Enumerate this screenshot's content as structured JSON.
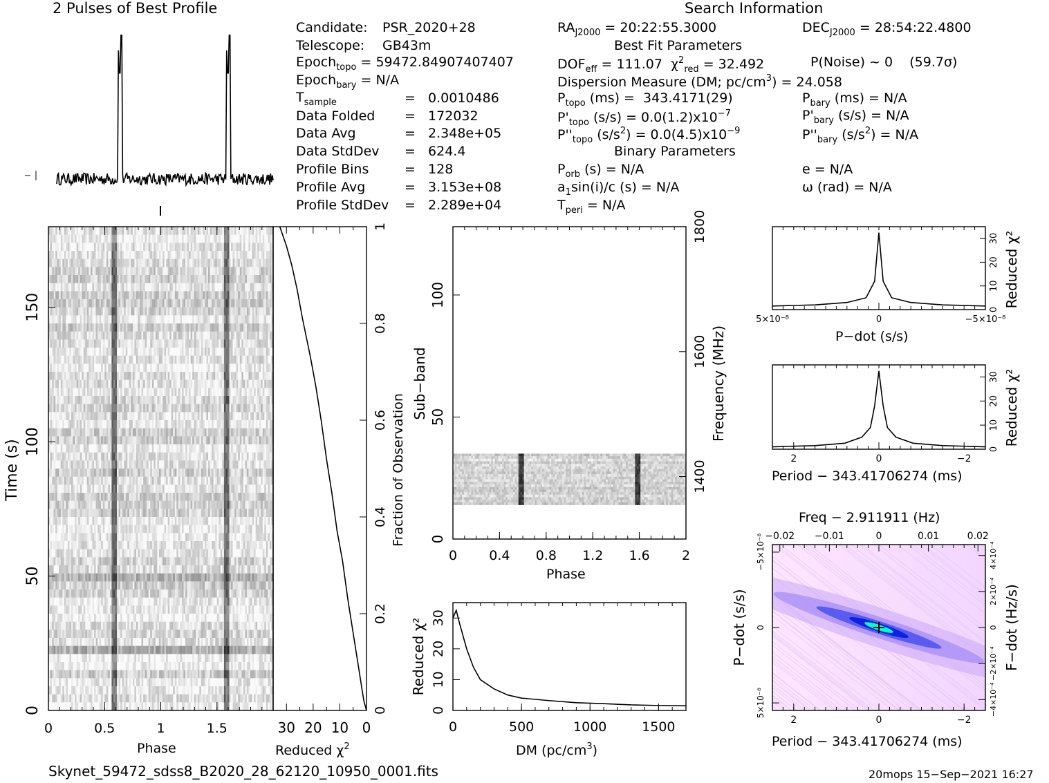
{
  "header": {
    "profile_title": "2 Pulses of Best Profile",
    "search_title": "Search Information",
    "best_fit_title": "Best Fit Parameters",
    "binary_title": "Binary Parameters"
  },
  "info": {
    "candidate_label": "Candidate:",
    "candidate": "PSR_2020+28",
    "telescope_label": "Telescope:",
    "telescope": "GB43m",
    "epoch_topo": "= 59472.84907407407",
    "epoch_bary": "= N/A",
    "t_sample": "=   0.0010486",
    "data_folded_label": "Data Folded",
    "data_folded": "=   172032",
    "data_avg_label": "Data Avg",
    "data_avg": "=   2.348e+05",
    "data_stddev_label": "Data StdDev",
    "data_stddev": "=   624.4",
    "profile_bins_label": "Profile Bins",
    "profile_bins": "=   128",
    "profile_avg_label": "Profile Avg",
    "profile_avg": "=   3.153e+08",
    "profile_stddev_label": "Profile StdDev",
    "profile_stddev": "=   2.289e+04"
  },
  "search": {
    "ra": "= 20:22:55.3000",
    "dec": "= 28:54:22.4800",
    "dof": "= 111.07",
    "chi2_red": "= 32.492",
    "p_noise": "P(Noise) ~ 0    (59.7σ)",
    "dm_label": "Dispersion Measure (DM; pc/cm",
    "dm_value": ") = 24.058",
    "p_topo": "(ms) =  343.4171(29)",
    "pd_topo": "(s/s) = 0.0(1.2)x10",
    "pd_topo_exp": "−7",
    "pdd_topo": "(s/s",
    "pdd_topo_val": ") = 0.0(4.5)x10",
    "pdd_topo_exp": "−9",
    "p_bary": "(ms) = N/A",
    "pd_bary": "(s/s) = N/A",
    "pdd_bary": ") = N/A",
    "p_orb": "(s) = N/A",
    "a1sini": "sin(i)/c (s) = N/A",
    "t_peri": "= N/A",
    "ecc": "e = N/A",
    "omega": "ω (rad) = N/A"
  },
  "labels": {
    "time_axis": "Time (s)",
    "phase_axis": "Phase",
    "reduced_chi2": "Reduced χ",
    "fraction_obs": "Fraction of Observation",
    "sub_band": "Sub−band",
    "frequency": "Frequency (MHz)",
    "dm_axis": "DM (pc/cm",
    "pdot_axis": "P−dot (s/s)",
    "period_axis": "Period − 343.41706274 (ms)",
    "freq_axis": "Freq − 2.911911 (Hz)",
    "fdot_axis": "F−dot (Hz/s)"
  },
  "footer": {
    "filename": "Skynet_59472_sdss8_B2020_28_62120_10950_0001.fits",
    "stamp": "20mops 15−Sep−2021 16:27"
  },
  "colors": {
    "ink": "#000000",
    "background": "#ffffff",
    "ppdot_low": "#ffe6ff",
    "ppdot_mid": "#6060ff",
    "ppdot_peak": "#00ffc0"
  },
  "chart_data": [
    {
      "type": "line",
      "name": "profile",
      "x": [
        0,
        0.25,
        0.5,
        0.55,
        0.58,
        0.6,
        0.62,
        0.65,
        0.75,
        1.0,
        1.25,
        1.5,
        1.55,
        1.58,
        1.6,
        1.62,
        1.65,
        1.75,
        2.0
      ],
      "y": [
        0.05,
        0.04,
        0.06,
        0.1,
        0.95,
        0.85,
        1.0,
        0.08,
        0.04,
        0.05,
        0.05,
        0.06,
        0.1,
        0.95,
        0.85,
        1.0,
        0.08,
        0.05,
        0.05
      ]
    },
    {
      "type": "heatmap",
      "name": "time-phase",
      "xlabel": "Phase",
      "ylabel": "Time (s)",
      "xlim": [
        0,
        2
      ],
      "ylim": [
        0,
        180
      ],
      "xticks": [
        "0",
        "0.5",
        "1",
        "1.5"
      ],
      "yticks": [
        "0",
        "50",
        "100",
        "150"
      ],
      "pulse_phase": [
        0.58,
        1.58
      ]
    },
    {
      "type": "line",
      "name": "chi2-vs-time",
      "xlabel": "Reduced χ²",
      "ylabel": "Fraction of Observation",
      "xlim": [
        35,
        0
      ],
      "ylim": [
        0,
        1
      ],
      "xticks": [
        "30",
        "20",
        "10",
        "0"
      ],
      "yticks": [
        "0",
        "0.2",
        "0.4",
        "0.6",
        "0.8",
        "1"
      ],
      "x": [
        0,
        1,
        3,
        5,
        7,
        9,
        11,
        13,
        15,
        17,
        19,
        21,
        24,
        26,
        28,
        30,
        32.5
      ],
      "y": [
        0,
        0.02,
        0.09,
        0.16,
        0.23,
        0.31,
        0.37,
        0.45,
        0.52,
        0.6,
        0.67,
        0.73,
        0.81,
        0.87,
        0.92,
        0.96,
        1.0
      ]
    },
    {
      "type": "heatmap",
      "name": "subband-phase",
      "xlabel": "Phase",
      "ylabel": "Sub−band",
      "y2label": "Frequency (MHz)",
      "xlim": [
        0,
        2
      ],
      "ylim": [
        0,
        128
      ],
      "y2lim": [
        1300,
        1800
      ],
      "xticks": [
        "0",
        "0.4",
        "0.8",
        "1.2",
        "1.6",
        "2"
      ],
      "yticks": [
        "0",
        "50",
        "100"
      ],
      "y2ticks": [
        "1400",
        "1600",
        "1800"
      ],
      "band_range": [
        14,
        35
      ],
      "pulse_phase": [
        0.58,
        1.58
      ]
    },
    {
      "type": "line",
      "name": "chi2-vs-dm",
      "xlabel": "DM (pc/cm³)",
      "ylabel": "Reduced χ²",
      "xlim": [
        0,
        1700
      ],
      "ylim": [
        0,
        35
      ],
      "xticks": [
        "0",
        "500",
        "1000",
        "1500"
      ],
      "yticks": [
        "0",
        "10",
        "20",
        "30"
      ],
      "x": [
        0,
        24,
        50,
        100,
        150,
        200,
        300,
        400,
        500,
        700,
        900,
        1100,
        1300,
        1500,
        1700
      ],
      "y": [
        30,
        32.5,
        28,
        20,
        14,
        10,
        7,
        5,
        4,
        3.2,
        2.5,
        2.2,
        1.8,
        1.6,
        1.5
      ]
    },
    {
      "type": "line",
      "name": "chi2-vs-pdot",
      "xlabel": "P−dot (s/s)",
      "ylabel": "Reduced χ²",
      "xlim": [
        5e-08,
        -5e-08
      ],
      "ylim": [
        0,
        35
      ],
      "xticks": [
        "5×10⁻⁸",
        "0",
        "−5×10⁻⁸"
      ],
      "yticks": [
        "0",
        "10",
        "20",
        "30"
      ],
      "x": [
        5e-08,
        3e-08,
        1.5e-08,
        6e-09,
        2e-09,
        0,
        -2e-09,
        -6e-09,
        -1.5e-08,
        -3e-08,
        -5e-08
      ],
      "y": [
        1.5,
        2,
        3,
        5,
        12,
        32.5,
        12,
        5,
        3,
        2,
        1.5
      ]
    },
    {
      "type": "line",
      "name": "chi2-vs-period",
      "xlabel": "Period − 343.41706274 (ms)",
      "ylabel": "Reduced χ²",
      "xlim": [
        2.5,
        -2.5
      ],
      "ylim": [
        0,
        35
      ],
      "xticks": [
        "2",
        "0",
        "−2"
      ],
      "yticks": [
        "0",
        "10",
        "20",
        "30"
      ],
      "x": [
        2.5,
        1.5,
        0.8,
        0.4,
        0.2,
        0.1,
        0,
        -0.1,
        -0.2,
        -0.4,
        -0.8,
        -1.5,
        -2.5
      ],
      "y": [
        1,
        1.5,
        2.5,
        5,
        9,
        18,
        32.5,
        18,
        9,
        5,
        2.5,
        1.5,
        1
      ]
    },
    {
      "type": "heatmap",
      "name": "period-pdot",
      "xlabel": "Period − 343.41706274 (ms)",
      "ylabel": "P−dot (s/s)",
      "x2label": "Freq − 2.911911 (Hz)",
      "y2label": "F−dot (Hz/s)",
      "xlim": [
        2.5,
        -2.5
      ],
      "ylim": [
        5e-08,
        -5e-08
      ],
      "xticks": [
        "2",
        "0",
        "−2"
      ],
      "yticks": [
        "5×10⁻⁸",
        "0",
        "−5×10⁻⁸"
      ],
      "x2ticks": [
        "−0.02",
        "−0.01",
        "0",
        "0.01",
        "0.02"
      ],
      "y2ticks": [
        "−4×10⁻⁴",
        "−2×10⁻⁴",
        "0",
        "2×10⁻⁴",
        "4×10⁻⁴"
      ],
      "peak": [
        0,
        0
      ]
    }
  ]
}
